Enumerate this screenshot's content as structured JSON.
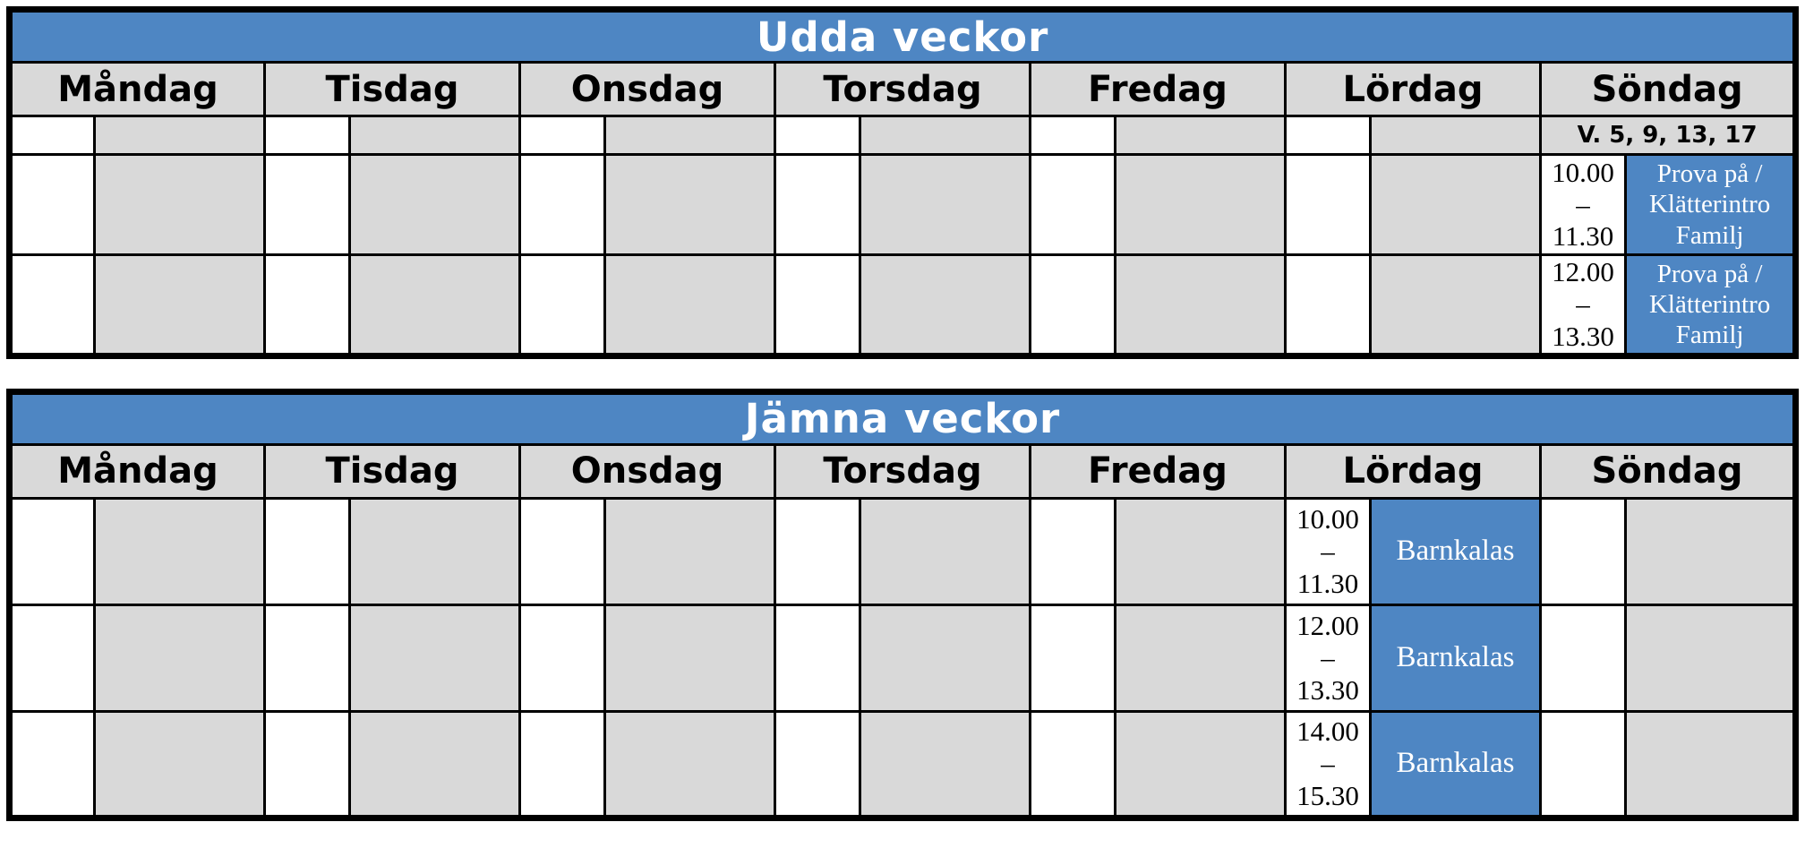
{
  "colors": {
    "header_blue": "#4e86c3",
    "event_blue": "#4e86c3",
    "cell_gray": "#d9d9d9",
    "border_black": "#000000",
    "page_white": "#ffffff"
  },
  "schedule": {
    "odd_weeks": {
      "title": "Udda veckor",
      "days": [
        "Måndag",
        "Tisdag",
        "Onsdag",
        "Torsdag",
        "Fredag",
        "Lördag",
        "Söndag"
      ],
      "week_note": "V. 5, 9, 13, 17",
      "week_note_day": "Söndag",
      "events_day": "Söndag",
      "events": [
        {
          "time": "10.00\n–\n11.30",
          "label": "Prova på /\nKlätterintro\nFamilj"
        },
        {
          "time": "12.00\n–\n13.30",
          "label": "Prova på /\nKlätterintro\nFamilj"
        }
      ]
    },
    "even_weeks": {
      "title": "Jämna veckor",
      "days": [
        "Måndag",
        "Tisdag",
        "Onsdag",
        "Torsdag",
        "Fredag",
        "Lördag",
        "Söndag"
      ],
      "events_day": "Lördag",
      "events": [
        {
          "time": "10.00\n–\n11.30",
          "label": "Barnkalas"
        },
        {
          "time": "12.00\n–\n13.30",
          "label": "Barnkalas"
        },
        {
          "time": "14.00\n–\n15.30",
          "label": "Barnkalas"
        }
      ]
    }
  }
}
